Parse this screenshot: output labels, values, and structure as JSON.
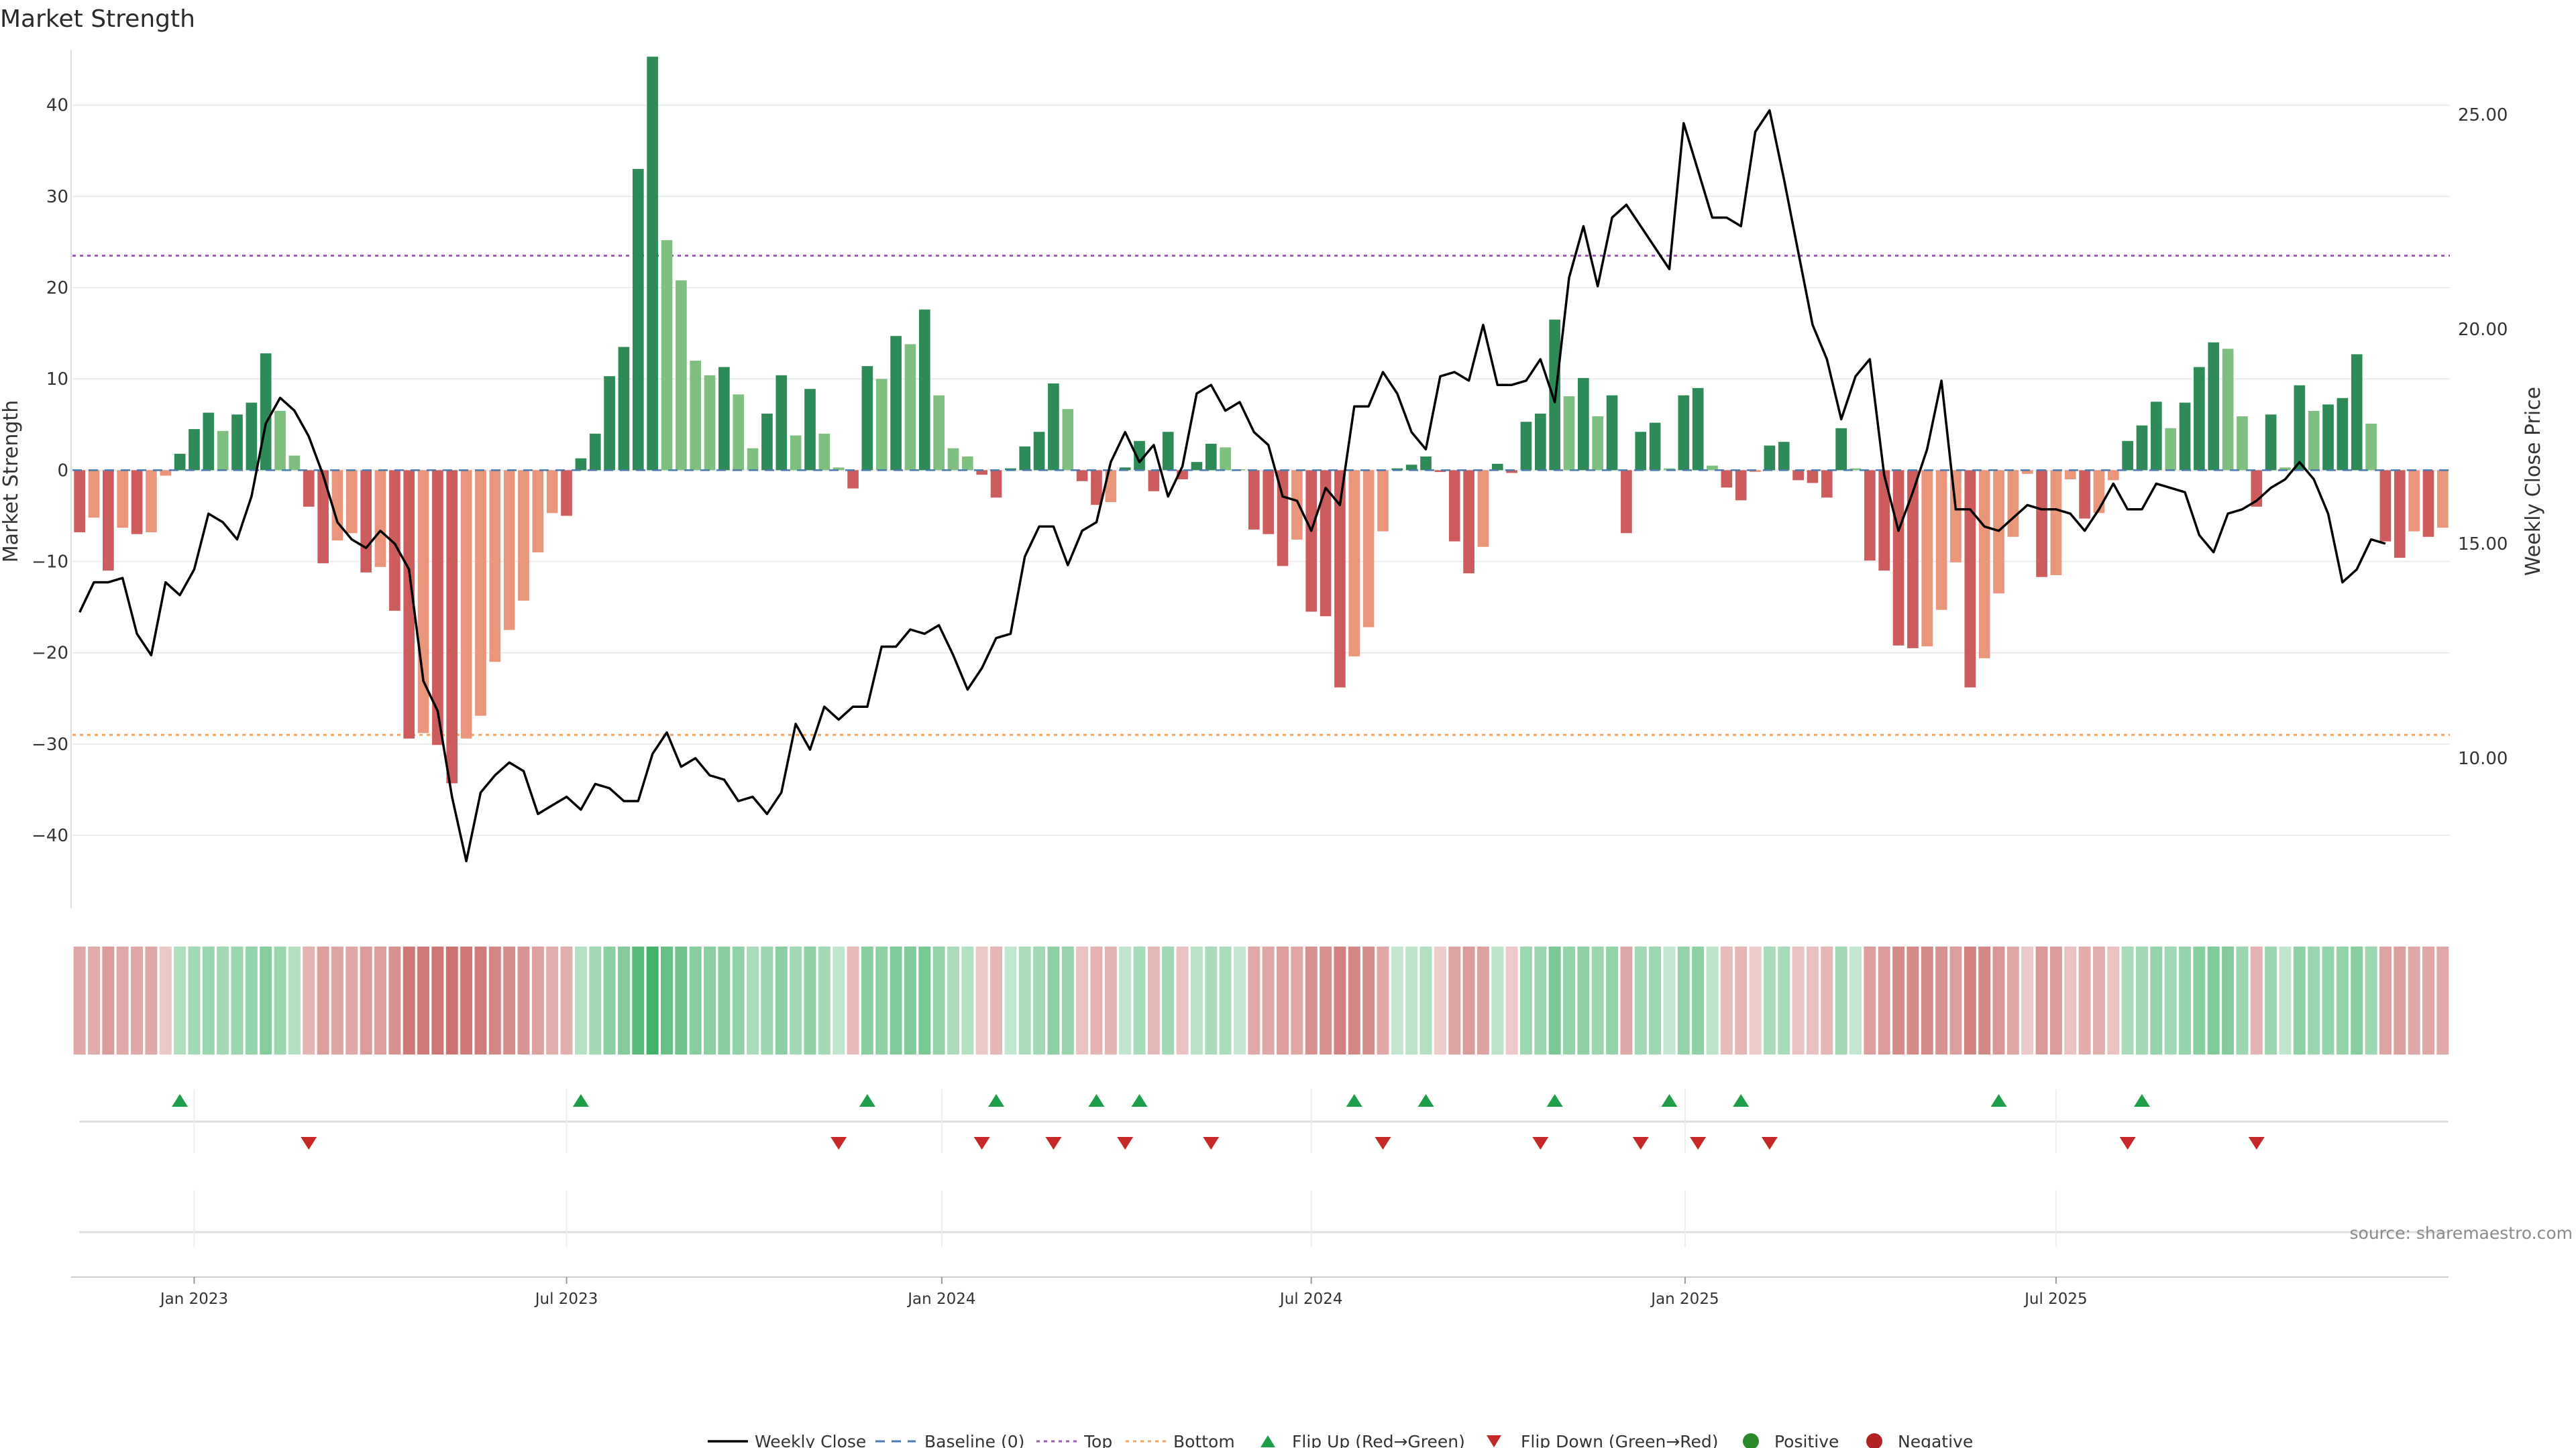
{
  "chart_data": {
    "type": "bar",
    "title": "Market Strength",
    "ylabel_left": "Market Strength",
    "ylabel_right": "Weekly Close Price",
    "ylim_left": [
      -48,
      46
    ],
    "ylim_right": [
      6.5,
      26.5
    ],
    "left_ticks": [
      "40",
      "30",
      "20",
      "10",
      "0",
      "−10",
      "−20",
      "−30",
      "−40"
    ],
    "left_tick_values": [
      40,
      30,
      20,
      10,
      0,
      -10,
      -20,
      -30,
      -40
    ],
    "right_ticks": [
      "25.00",
      "20.00",
      "15.00",
      "10.00"
    ],
    "right_tick_values": [
      25,
      20,
      15,
      10
    ],
    "x_ticks": [
      "Jan 2023",
      "Jul 2023",
      "Jan 2024",
      "Jul 2024",
      "Jan 2025",
      "Jul 2025"
    ],
    "x_tick_weeks": [
      8.5,
      34.5,
      60.7,
      86.5,
      112.6,
      138.5
    ],
    "top_threshold": 23.5,
    "bottom_threshold": -29,
    "grid": true,
    "legend_position": "bottom-center",
    "colors": {
      "strong_green": "#2e8b57",
      "light_green": "#7fbf7f",
      "strong_red": "#cd5c5c",
      "light_red": "#e9967a",
      "price_line": "#000000",
      "baseline": "#4a7ab0",
      "top_line": "#9b59b6",
      "bottom_line": "#f4a460",
      "flip_up": "#1f9e4a",
      "flip_down": "#c62828",
      "positive": "#2a8a2a",
      "negative": "#b22222"
    },
    "series": [
      {
        "name": "Market Strength",
        "values": [
          -6.8,
          -5.2,
          -11,
          -6.3,
          -7,
          -6.8,
          -0.6,
          1.8,
          4.5,
          6.3,
          4.3,
          6.1,
          7.4,
          12.8,
          6.5,
          1.6,
          -4,
          -10.2,
          -7.7,
          -6.9,
          -11.2,
          -10.6,
          -15.4,
          -29.4,
          -28.8,
          -30.1,
          -34.3,
          -29.4,
          -26.9,
          -21,
          -17.5,
          -14.3,
          -9,
          -4.7,
          -5,
          1.3,
          4,
          10.3,
          13.5,
          33,
          45.3,
          25.2,
          20.8,
          12,
          10.4,
          11.3,
          8.3,
          2.4,
          6.2,
          10.4,
          3.8,
          8.9,
          4,
          0.3,
          -2,
          11.4,
          10,
          14.7,
          13.8,
          17.6,
          8.2,
          2.4,
          1.5,
          -0.5,
          -3,
          0.2,
          2.6,
          4.2,
          9.5,
          6.7,
          -1.2,
          -3.8,
          -3.5,
          0.3,
          3.2,
          -2.3,
          4.2,
          -1,
          0.9,
          2.9,
          2.5,
          0.1,
          -6.5,
          -7,
          -10.5,
          -7.6,
          -15.5,
          -16,
          -23.8,
          -20.4,
          -17.2,
          -6.7,
          0.2,
          0.6,
          1.5,
          -0.2,
          -7.8,
          -11.3,
          -8.4,
          0.7,
          -0.3,
          5.3,
          6.2,
          16.5,
          8.1,
          10.1,
          5.9,
          8.2,
          -6.9,
          4.2,
          5.2,
          0.2,
          8.2,
          9,
          0.5,
          -1.9,
          -3.3,
          -0.2,
          2.7,
          3.1,
          -1.1,
          -1.4,
          -3,
          4.6,
          0.2,
          -9.9,
          -11,
          -19.2,
          -19.5,
          -19.3,
          -15.3,
          -10.1,
          -23.8,
          -20.6,
          -13.5,
          -7.3,
          -0.4,
          -11.7,
          -11.5,
          -1,
          -5.3,
          -4.7,
          -1.1,
          3.2,
          4.9,
          7.5,
          4.6,
          7.4,
          11.3,
          14,
          13.3,
          5.9,
          -4,
          6.1,
          0.3,
          9.3,
          6.5,
          7.2,
          7.9,
          12.7,
          5.1,
          -7.8,
          -9.6,
          -6.7,
          -7.3,
          -6.3
        ]
      },
      {
        "name": "Weekly Close",
        "values": [
          13.4,
          14.1,
          14.1,
          14.2,
          12.9,
          12.4,
          14.1,
          13.8,
          14.4,
          15.7,
          15.5,
          15.1,
          16.1,
          17.8,
          18.4,
          18.1,
          17.5,
          16.6,
          15.5,
          15.1,
          14.9,
          15.3,
          15,
          14.4,
          11.8,
          11.1,
          9.1,
          7.6,
          9.2,
          9.6,
          9.9,
          9.7,
          8.7,
          8.9,
          9.1,
          8.8,
          9.4,
          9.3,
          9,
          9,
          10.1,
          10.6,
          9.8,
          10,
          9.6,
          9.5,
          9,
          9.1,
          8.7,
          9.2,
          10.8,
          10.2,
          11.2,
          10.9,
          11.2,
          11.2,
          12.6,
          12.6,
          13,
          12.9,
          13.1,
          12.4,
          11.6,
          12.1,
          12.8,
          12.9,
          14.7,
          15.4,
          15.4,
          14.5,
          15.3,
          15.5,
          16.9,
          17.6,
          16.9,
          17.3,
          16.1,
          16.8,
          18.5,
          18.7,
          18.1,
          18.3,
          17.6,
          17.3,
          16.1,
          16,
          15.3,
          16.3,
          15.9,
          18.2,
          18.2,
          19,
          18.5,
          17.6,
          17.2,
          18.9,
          19,
          18.8,
          20.1,
          18.7,
          18.7,
          18.8,
          19.3,
          18.3,
          21.2,
          22.4,
          21,
          22.6,
          22.9,
          22.4,
          21.9,
          21.4,
          24.8,
          23.7,
          22.6,
          22.6,
          22.4,
          24.6,
          25.1,
          23.5,
          21.8,
          20.1,
          19.3,
          17.9,
          18.9,
          19.3,
          16.6,
          15.3,
          16.2,
          17.2,
          18.8,
          15.8,
          15.8,
          15.4,
          15.3,
          15.6,
          15.9,
          15.8,
          15.8,
          15.7,
          15.3,
          15.8,
          16.4,
          15.8,
          15.8,
          16.4,
          16.3,
          16.2,
          15.2,
          14.8,
          15.7,
          15.8,
          16,
          16.3,
          16.5,
          16.9,
          16.5,
          15.7,
          14.1,
          14.4,
          15.1,
          15
        ]
      }
    ],
    "flip_up_weeks": [
      7,
      35,
      55,
      64,
      71,
      74,
      89,
      94,
      103,
      111,
      116,
      134,
      144
    ],
    "flip_down_weeks": [
      16,
      53,
      63,
      68,
      73,
      79,
      91,
      102,
      109,
      113,
      118,
      143,
      152
    ],
    "legend": [
      "Weekly Close",
      "Baseline (0)",
      "Top",
      "Bottom",
      "Flip Up (Red→Green)",
      "Flip Down (Green→Red)",
      "Positive",
      "Negative"
    ],
    "source": "source: sharemaestro.com"
  }
}
